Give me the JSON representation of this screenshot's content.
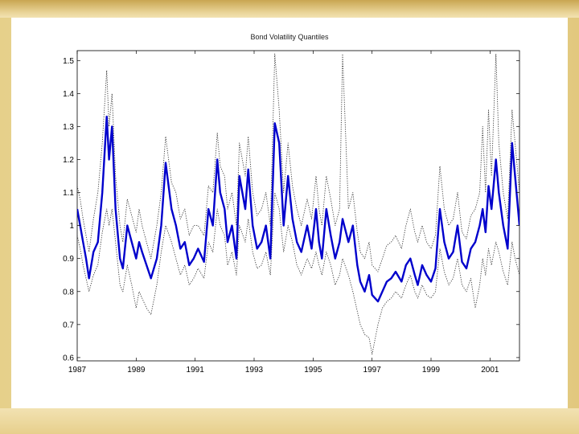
{
  "chart_data": {
    "type": "line",
    "title": "Bond Volatility Quantiles",
    "xlabel": "",
    "ylabel": "",
    "xlim": [
      1987,
      2002
    ],
    "ylim": [
      0.59,
      1.53
    ],
    "x_ticks": [
      "1987",
      "1989",
      "1991",
      "1993",
      "1995",
      "1997",
      "1999",
      "2001"
    ],
    "y_ticks": [
      "0.6",
      "0.7",
      "0.8",
      "0.9",
      "1",
      "1.1",
      "1.2",
      "1.3",
      "1.4",
      "1.5"
    ],
    "grid": false,
    "legend": "none",
    "series": [
      {
        "color": "#0000cc",
        "style": "solid-thick",
        "x": [
          1987.0,
          1987.1,
          1987.2,
          1987.3,
          1987.4,
          1987.55,
          1987.7,
          1987.85,
          1988.0,
          1988.08,
          1988.18,
          1988.3,
          1988.45,
          1988.55,
          1988.7,
          1988.85,
          1989.0,
          1989.1,
          1989.2,
          1989.35,
          1989.5,
          1989.7,
          1989.85,
          1990.0,
          1990.2,
          1990.35,
          1990.5,
          1990.65,
          1990.8,
          1990.95,
          1991.1,
          1991.3,
          1991.45,
          1991.6,
          1991.75,
          1991.85,
          1992.0,
          1992.1,
          1992.25,
          1992.4,
          1992.5,
          1992.7,
          1992.8,
          1992.95,
          1993.1,
          1993.25,
          1993.4,
          1993.55,
          1993.7,
          1993.85,
          1994.0,
          1994.15,
          1994.3,
          1994.45,
          1994.6,
          1994.8,
          1994.95,
          1995.1,
          1995.2,
          1995.3,
          1995.45,
          1995.6,
          1995.75,
          1995.9,
          1996.0,
          1996.2,
          1996.35,
          1996.5,
          1996.6,
          1996.75,
          1996.9,
          1997.0,
          1997.2,
          1997.35,
          1997.5,
          1997.65,
          1997.8,
          1998.0,
          1998.15,
          1998.3,
          1998.45,
          1998.55,
          1998.7,
          1998.85,
          1999.0,
          1999.15,
          1999.3,
          1999.45,
          1999.6,
          1999.75,
          1999.9,
          2000.05,
          2000.2,
          2000.35,
          2000.5,
          2000.65,
          2000.75,
          2000.85,
          2000.95,
          2001.05,
          2001.2,
          2001.3,
          2001.45,
          2001.6,
          2001.75,
          2001.85,
          2002.0
        ],
        "y": [
          1.05,
          1.0,
          0.95,
          0.9,
          0.84,
          0.92,
          0.95,
          1.1,
          1.33,
          1.2,
          1.3,
          1.05,
          0.9,
          0.87,
          1.0,
          0.95,
          0.9,
          0.95,
          0.92,
          0.88,
          0.84,
          0.9,
          1.0,
          1.19,
          1.05,
          1.0,
          0.93,
          0.95,
          0.88,
          0.9,
          0.93,
          0.89,
          1.05,
          1.0,
          1.2,
          1.1,
          1.05,
          0.95,
          1.0,
          0.9,
          1.15,
          1.05,
          1.17,
          1.0,
          0.93,
          0.95,
          1.0,
          0.9,
          1.31,
          1.25,
          1.0,
          1.15,
          1.02,
          0.95,
          0.92,
          1.0,
          0.93,
          1.05,
          0.95,
          0.9,
          1.05,
          0.97,
          0.9,
          0.95,
          1.02,
          0.95,
          1.0,
          0.88,
          0.83,
          0.8,
          0.85,
          0.79,
          0.77,
          0.8,
          0.83,
          0.84,
          0.86,
          0.83,
          0.88,
          0.9,
          0.85,
          0.82,
          0.88,
          0.85,
          0.83,
          0.87,
          1.05,
          0.95,
          0.9,
          0.92,
          1.0,
          0.89,
          0.87,
          0.93,
          0.95,
          1.0,
          1.05,
          0.98,
          1.12,
          1.05,
          1.2,
          1.1,
          1.0,
          0.93,
          1.25,
          1.15,
          1.0
        ]
      },
      {
        "color": "#333333",
        "style": "dotted-upper",
        "x": [
          1987.0,
          1987.1,
          1987.2,
          1987.3,
          1987.4,
          1987.55,
          1987.7,
          1987.85,
          1988.0,
          1988.08,
          1988.18,
          1988.3,
          1988.45,
          1988.55,
          1988.7,
          1988.85,
          1989.0,
          1989.1,
          1989.2,
          1989.35,
          1989.5,
          1989.7,
          1989.85,
          1990.0,
          1990.2,
          1990.35,
          1990.5,
          1990.65,
          1990.8,
          1990.95,
          1991.1,
          1991.3,
          1991.45,
          1991.6,
          1991.75,
          1991.85,
          1992.0,
          1992.1,
          1992.25,
          1992.4,
          1992.5,
          1992.7,
          1992.8,
          1992.95,
          1993.1,
          1993.25,
          1993.4,
          1993.55,
          1993.7,
          1993.85,
          1994.0,
          1994.15,
          1994.3,
          1994.45,
          1994.6,
          1994.8,
          1994.95,
          1995.1,
          1995.2,
          1995.3,
          1995.45,
          1995.6,
          1995.75,
          1995.9,
          1996.0,
          1996.2,
          1996.35,
          1996.5,
          1996.6,
          1996.75,
          1996.9,
          1997.0,
          1997.2,
          1997.35,
          1997.5,
          1997.65,
          1997.8,
          1998.0,
          1998.15,
          1998.3,
          1998.45,
          1998.55,
          1998.7,
          1998.85,
          1999.0,
          1999.15,
          1999.3,
          1999.45,
          1999.6,
          1999.75,
          1999.9,
          2000.05,
          2000.2,
          2000.35,
          2000.5,
          2000.65,
          2000.75,
          2000.85,
          2000.95,
          2001.05,
          2001.2,
          2001.3,
          2001.45,
          2001.6,
          2001.75,
          2001.85,
          2002.0
        ],
        "y": [
          1.12,
          1.08,
          1.02,
          0.97,
          0.92,
          1.02,
          1.1,
          1.25,
          1.47,
          1.3,
          1.4,
          1.15,
          1.0,
          0.95,
          1.08,
          1.03,
          0.98,
          1.05,
          1.0,
          0.95,
          0.9,
          1.0,
          1.1,
          1.27,
          1.13,
          1.1,
          1.02,
          1.05,
          0.97,
          1.0,
          1.0,
          0.97,
          1.12,
          1.1,
          1.28,
          1.18,
          1.15,
          1.05,
          1.1,
          1.0,
          1.25,
          1.15,
          1.27,
          1.1,
          1.03,
          1.05,
          1.1,
          1.0,
          1.52,
          1.35,
          1.1,
          1.25,
          1.12,
          1.05,
          1.0,
          1.08,
          1.02,
          1.15,
          1.05,
          1.0,
          1.15,
          1.08,
          1.0,
          1.05,
          1.52,
          1.05,
          1.1,
          0.98,
          0.92,
          0.9,
          0.95,
          0.88,
          0.86,
          0.9,
          0.94,
          0.95,
          0.97,
          0.93,
          1.0,
          1.05,
          0.98,
          0.95,
          1.0,
          0.95,
          0.93,
          0.97,
          1.18,
          1.05,
          1.0,
          1.02,
          1.1,
          0.98,
          0.96,
          1.03,
          1.05,
          1.1,
          1.3,
          1.1,
          1.35,
          1.15,
          1.52,
          1.25,
          1.1,
          1.02,
          1.35,
          1.25,
          1.1
        ]
      },
      {
        "color": "#333333",
        "style": "dotted-lower",
        "x": [
          1987.0,
          1987.1,
          1987.2,
          1987.3,
          1987.4,
          1987.55,
          1987.7,
          1987.85,
          1988.0,
          1988.08,
          1988.18,
          1988.3,
          1988.45,
          1988.55,
          1988.7,
          1988.85,
          1989.0,
          1989.1,
          1989.2,
          1989.35,
          1989.5,
          1989.7,
          1989.85,
          1990.0,
          1990.2,
          1990.35,
          1990.5,
          1990.65,
          1990.8,
          1990.95,
          1991.1,
          1991.3,
          1991.45,
          1991.6,
          1991.75,
          1991.85,
          1992.0,
          1992.1,
          1992.25,
          1992.4,
          1992.5,
          1992.7,
          1992.8,
          1992.95,
          1993.1,
          1993.25,
          1993.4,
          1993.55,
          1993.7,
          1993.85,
          1994.0,
          1994.15,
          1994.3,
          1994.45,
          1994.6,
          1994.8,
          1994.95,
          1995.1,
          1995.2,
          1995.3,
          1995.45,
          1995.6,
          1995.75,
          1995.9,
          1996.0,
          1996.2,
          1996.35,
          1996.5,
          1996.6,
          1996.75,
          1996.9,
          1997.0,
          1997.2,
          1997.35,
          1997.5,
          1997.65,
          1997.8,
          1998.0,
          1998.15,
          1998.3,
          1998.45,
          1998.55,
          1998.7,
          1998.85,
          1999.0,
          1999.15,
          1999.3,
          1999.45,
          1999.6,
          1999.75,
          1999.9,
          2000.05,
          2000.2,
          2000.35,
          2000.5,
          2000.65,
          2000.75,
          2000.85,
          2000.95,
          2001.05,
          2001.2,
          2001.3,
          2001.45,
          2001.6,
          2001.75,
          2001.85,
          2002.0
        ],
        "y": [
          0.97,
          0.93,
          0.88,
          0.84,
          0.8,
          0.85,
          0.88,
          0.98,
          1.05,
          1.0,
          1.05,
          0.95,
          0.82,
          0.8,
          0.88,
          0.82,
          0.75,
          0.8,
          0.78,
          0.75,
          0.73,
          0.82,
          0.92,
          1.0,
          0.95,
          0.9,
          0.85,
          0.88,
          0.82,
          0.84,
          0.87,
          0.84,
          0.95,
          0.92,
          1.05,
          1.0,
          0.97,
          0.88,
          0.92,
          0.85,
          1.0,
          0.95,
          1.02,
          0.92,
          0.87,
          0.88,
          0.92,
          0.85,
          1.1,
          1.05,
          0.92,
          1.0,
          0.95,
          0.88,
          0.85,
          0.9,
          0.87,
          0.92,
          0.88,
          0.85,
          0.92,
          0.88,
          0.82,
          0.85,
          0.9,
          0.85,
          0.8,
          0.74,
          0.7,
          0.67,
          0.66,
          0.61,
          0.7,
          0.75,
          0.77,
          0.78,
          0.8,
          0.78,
          0.82,
          0.85,
          0.8,
          0.78,
          0.82,
          0.79,
          0.78,
          0.8,
          0.93,
          0.86,
          0.82,
          0.84,
          0.9,
          0.82,
          0.8,
          0.84,
          0.75,
          0.82,
          0.9,
          0.85,
          0.93,
          0.88,
          0.95,
          0.92,
          0.86,
          0.82,
          0.95,
          0.9,
          0.85
        ]
      }
    ]
  }
}
